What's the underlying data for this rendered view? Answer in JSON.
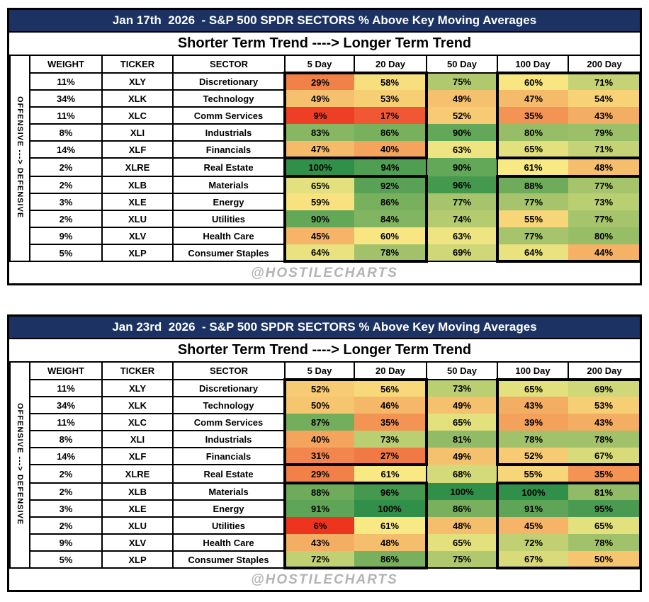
{
  "shared": {
    "subtitle": "Shorter Term Trend ----> Longer Term Trend",
    "side_label": "OFFENSIVE ---> DEFENSIVE",
    "watermark": "@HOSTILECHARTS",
    "left_columns": [
      "WEIGHT",
      "TICKER",
      "SECTOR"
    ],
    "units": "%"
  },
  "colors": {
    "title_bg": "#1B3262",
    "title_text": "#FFFFFF",
    "border": "#000000",
    "watermark_text": "#B3B3B3",
    "heatmap_low": "#EC2014",
    "heatmap_mid": "#F8E984",
    "heatmap_high": "#309049",
    "heatmap_mid_value": 61
  },
  "chart_data": [
    {
      "type": "heatmap",
      "title": "Jan 17th  2026  - S&P 500 SPDR SECTORS % Above Key Moving Averages",
      "subtitle": "Shorter Term Trend ----> Longer Term Trend",
      "columns": [
        "5 Day",
        "20 Day",
        "50 Day",
        "100 Day",
        "200 Day"
      ],
      "units": "%",
      "color_scale": {
        "0": "#EC2014",
        "61": "#F8E984",
        "100": "#309049"
      },
      "rows": [
        {
          "weight": "11%",
          "ticker": "XLY",
          "sector": "Discretionary",
          "values": [
            29,
            58,
            75,
            60,
            71
          ]
        },
        {
          "weight": "34%",
          "ticker": "XLK",
          "sector": "Technology",
          "values": [
            49,
            53,
            49,
            47,
            54
          ]
        },
        {
          "weight": "11%",
          "ticker": "XLC",
          "sector": "Comm Services",
          "values": [
            9,
            17,
            52,
            35,
            43
          ]
        },
        {
          "weight": "8%",
          "ticker": "XLI",
          "sector": "Industrials",
          "values": [
            83,
            86,
            90,
            80,
            79
          ]
        },
        {
          "weight": "14%",
          "ticker": "XLF",
          "sector": "Financials",
          "values": [
            47,
            40,
            63,
            65,
            71
          ]
        },
        {
          "weight": "2%",
          "ticker": "XLRE",
          "sector": "Real Estate",
          "values": [
            100,
            94,
            90,
            61,
            48
          ]
        },
        {
          "weight": "2%",
          "ticker": "XLB",
          "sector": "Materials",
          "values": [
            65,
            92,
            96,
            88,
            77
          ]
        },
        {
          "weight": "3%",
          "ticker": "XLE",
          "sector": "Energy",
          "values": [
            59,
            86,
            77,
            77,
            73
          ]
        },
        {
          "weight": "2%",
          "ticker": "XLU",
          "sector": "Utilities",
          "values": [
            90,
            84,
            74,
            55,
            77
          ]
        },
        {
          "weight": "9%",
          "ticker": "XLV",
          "sector": "Health Care",
          "values": [
            45,
            60,
            63,
            77,
            80
          ]
        },
        {
          "weight": "5%",
          "ticker": "XLP",
          "sector": "Consumer Staples",
          "values": [
            64,
            78,
            69,
            64,
            44
          ]
        }
      ]
    },
    {
      "type": "heatmap",
      "title": "Jan 23rd  2026  - S&P 500 SPDR SECTORS % Above Key Moving Averages",
      "subtitle": "Shorter Term Trend ----> Longer Term Trend",
      "columns": [
        "5 Day",
        "20 Day",
        "50 Day",
        "100 Day",
        "200 Day"
      ],
      "units": "%",
      "color_scale": {
        "0": "#EC2014",
        "61": "#F8E984",
        "100": "#309049"
      },
      "rows": [
        {
          "weight": "11%",
          "ticker": "XLY",
          "sector": "Discretionary",
          "values": [
            52,
            56,
            73,
            65,
            69
          ]
        },
        {
          "weight": "34%",
          "ticker": "XLK",
          "sector": "Technology",
          "values": [
            50,
            46,
            49,
            43,
            53
          ]
        },
        {
          "weight": "11%",
          "ticker": "XLC",
          "sector": "Comm Services",
          "values": [
            87,
            35,
            65,
            39,
            43
          ]
        },
        {
          "weight": "8%",
          "ticker": "XLI",
          "sector": "Industrials",
          "values": [
            40,
            73,
            81,
            78,
            78
          ]
        },
        {
          "weight": "14%",
          "ticker": "XLF",
          "sector": "Financials",
          "values": [
            31,
            27,
            49,
            52,
            67
          ]
        },
        {
          "weight": "2%",
          "ticker": "XLRE",
          "sector": "Real Estate",
          "values": [
            29,
            61,
            68,
            55,
            35
          ]
        },
        {
          "weight": "2%",
          "ticker": "XLB",
          "sector": "Materials",
          "values": [
            88,
            96,
            100,
            100,
            81
          ]
        },
        {
          "weight": "3%",
          "ticker": "XLE",
          "sector": "Energy",
          "values": [
            91,
            100,
            86,
            91,
            95
          ]
        },
        {
          "weight": "2%",
          "ticker": "XLU",
          "sector": "Utilities",
          "values": [
            6,
            61,
            48,
            45,
            65
          ]
        },
        {
          "weight": "9%",
          "ticker": "XLV",
          "sector": "Health Care",
          "values": [
            43,
            48,
            65,
            72,
            78
          ]
        },
        {
          "weight": "5%",
          "ticker": "XLP",
          "sector": "Consumer Staples",
          "values": [
            72,
            86,
            75,
            67,
            50
          ]
        }
      ]
    }
  ]
}
